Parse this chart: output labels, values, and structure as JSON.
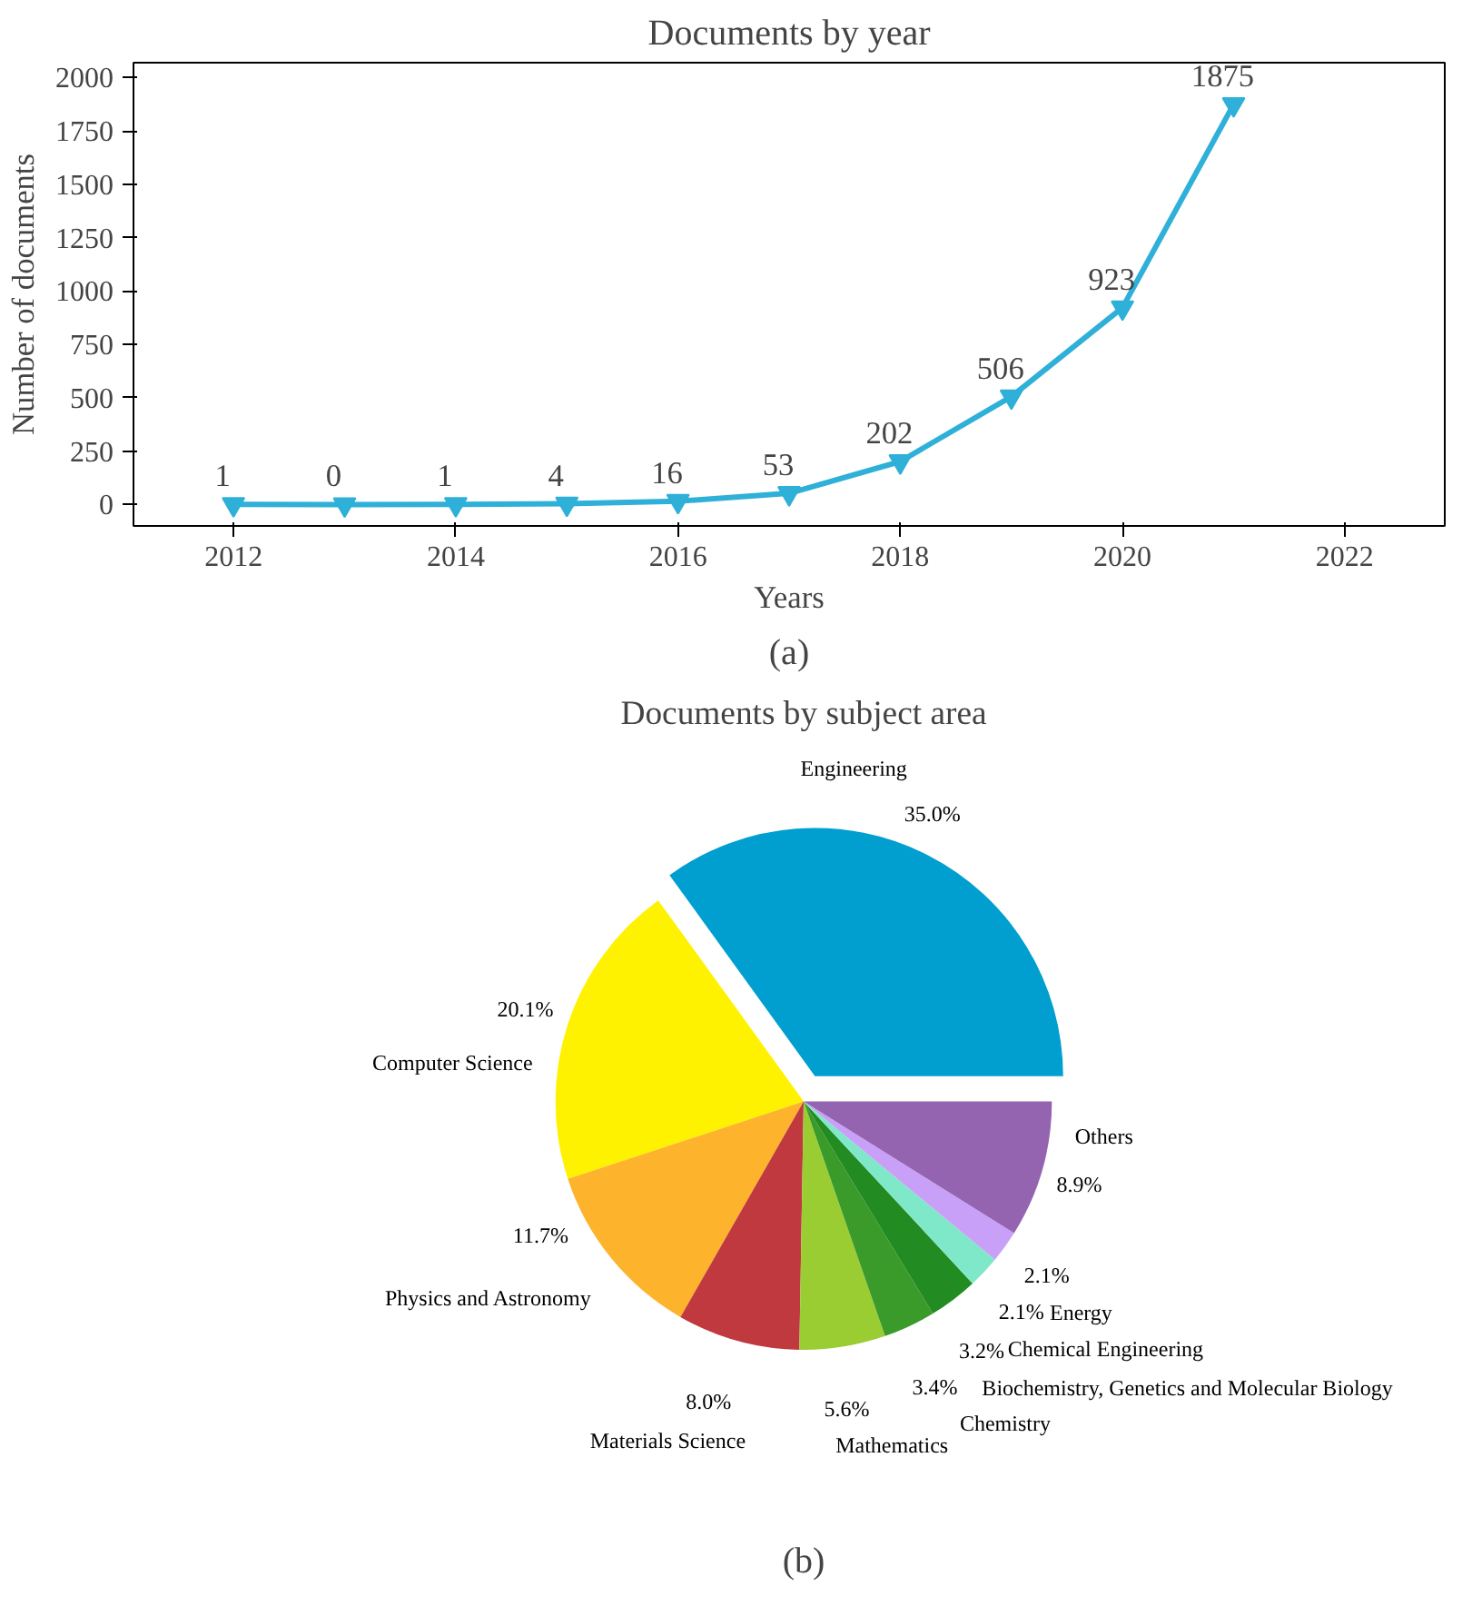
{
  "chart_data": [
    {
      "type": "line",
      "title": "Documents by year",
      "xlabel": "Years",
      "ylabel": "Number of documents",
      "annotations": [
        "(a)"
      ],
      "x": [
        2012,
        2013,
        2014,
        2015,
        2016,
        2017,
        2018,
        2019,
        2020,
        2021
      ],
      "series": [
        {
          "color": "#2eb0d8",
          "values": [
            1,
            0,
            1,
            4,
            16,
            53,
            202,
            506,
            923,
            1875
          ]
        }
      ],
      "xlim": [
        2011.1,
        2022.9
      ],
      "xticks": [
        2012,
        2014,
        2016,
        2018,
        2020,
        2022
      ],
      "ylim": [
        -100,
        2070
      ],
      "yticks": [
        0,
        250,
        500,
        750,
        1000,
        1250,
        1500,
        1750,
        2000
      ],
      "data_labels": true,
      "marker": "triangle",
      "line_style": "solid",
      "grid": false,
      "legend": false
    },
    {
      "type": "pie",
      "title": "Documents by subject area",
      "annotations": [
        "(b)"
      ],
      "categories": [
        "Engineering",
        "Computer Science",
        "Physics and Astronomy",
        "Materials Science",
        "Mathematics",
        "Chemistry",
        "Biochemistry, Genetics and Molecular Biology",
        "Chemical Engineering",
        "Energy",
        "Others"
      ],
      "values": [
        35.0,
        20.1,
        11.7,
        8.0,
        5.6,
        3.4,
        3.2,
        2.1,
        2.1,
        8.9
      ],
      "value_labels": [
        "35.0%",
        "20.1%",
        "11.7%",
        "8.0%",
        "5.6%",
        "3.4%",
        "3.2%",
        "2.1%",
        "2.1%",
        "8.9%"
      ],
      "colors": [
        "#009fcf",
        "#fff200",
        "#fdb42c",
        "#c0393f",
        "#9acd32",
        "#3a9a2a",
        "#228b22",
        "#7fe8c8",
        "#c9a0f7",
        "#9564b0"
      ],
      "legend": false
    }
  ]
}
